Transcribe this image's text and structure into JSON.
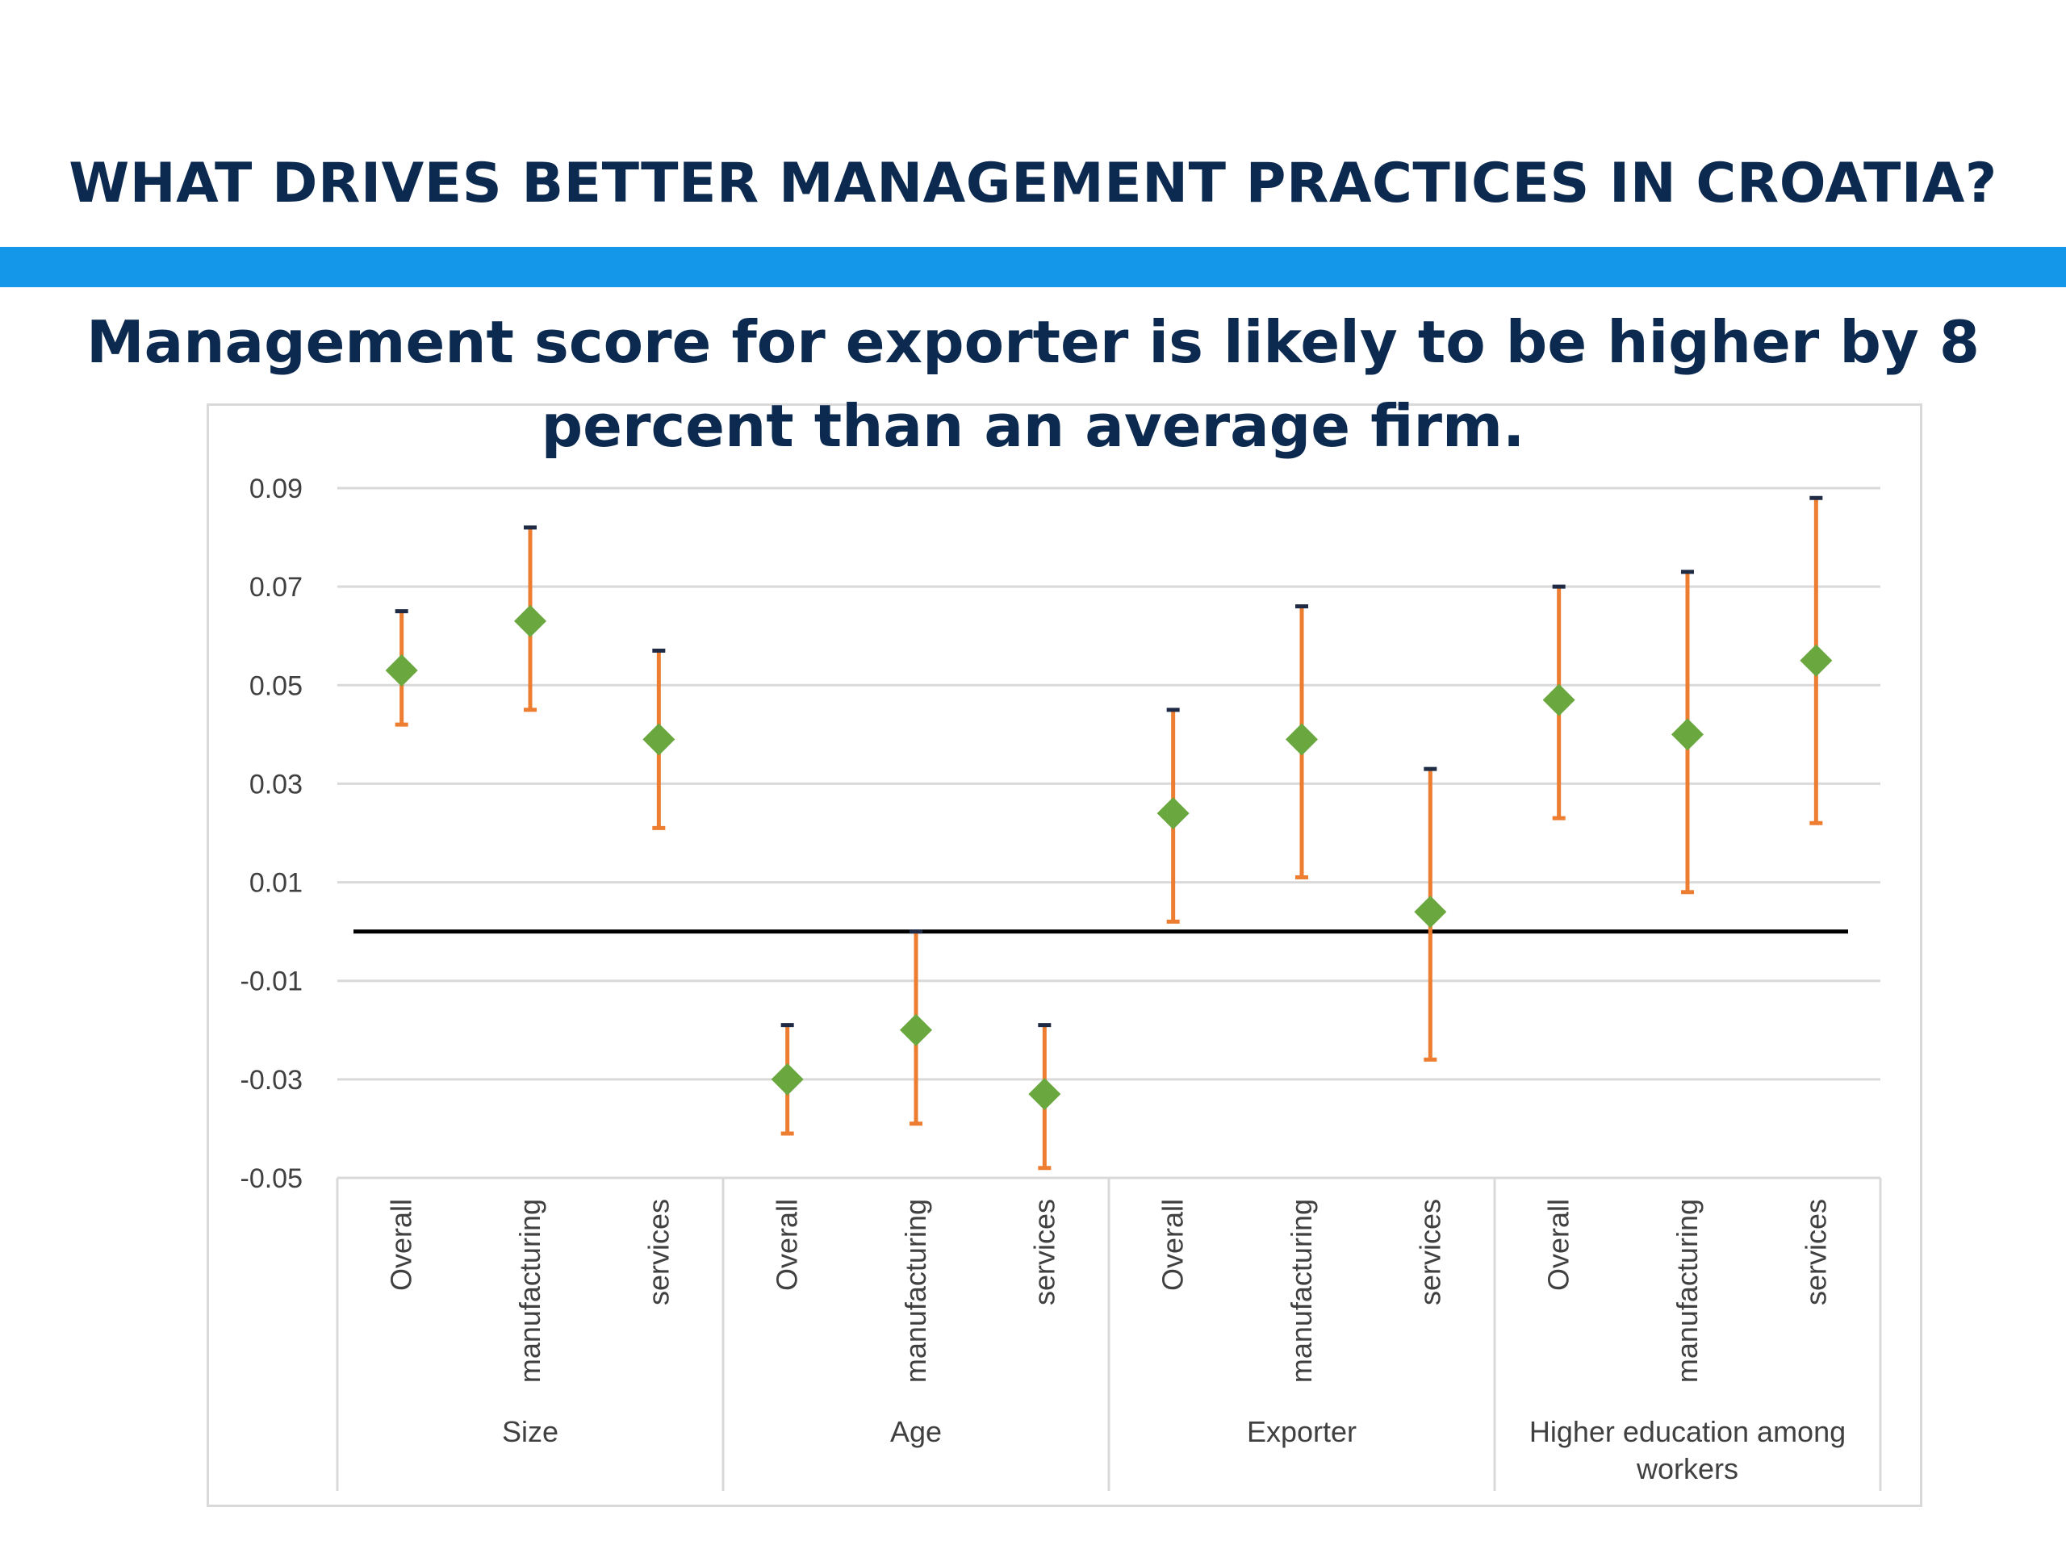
{
  "slide": {
    "title": "WHAT DRIVES BETTER MANAGEMENT PRACTICES IN CROATIA?",
    "subtitle": "Management score for exporter is likely to be higher by 8 percent than an average firm."
  },
  "colors": {
    "accent_bar": "#1497e8",
    "title_text": "#0c2a4f",
    "marker": "#6aa83f",
    "error_bar": "#ed7d31",
    "zero_line": "#000000",
    "grid": "#d9d9d9"
  },
  "chart_data": {
    "type": "scatter",
    "title": "",
    "xlabel": "",
    "ylabel": "",
    "ylim": [
      -0.05,
      0.09
    ],
    "yticks": [
      "0.09",
      "0.07",
      "0.05",
      "0.03",
      "0.01",
      "-0.01",
      "-0.03",
      "-0.05"
    ],
    "ytick_values": [
      0.09,
      0.07,
      0.05,
      0.03,
      0.01,
      -0.01,
      -0.03,
      -0.05
    ],
    "grid": true,
    "reference_line": 0,
    "groups": [
      {
        "label": "Size",
        "categories": [
          "Overall",
          "manufacturing",
          "services"
        ]
      },
      {
        "label": "Age",
        "categories": [
          "Overall",
          "manufacturing",
          "services"
        ]
      },
      {
        "label": "Exporter",
        "categories": [
          "Overall",
          "manufacturing",
          "services"
        ]
      },
      {
        "label": "Higher education among workers",
        "categories": [
          "Overall",
          "manufacturing",
          "services"
        ]
      }
    ],
    "points": [
      {
        "value": 0.053,
        "low": 0.042,
        "high": 0.065
      },
      {
        "value": 0.063,
        "low": 0.045,
        "high": 0.082
      },
      {
        "value": 0.039,
        "low": 0.021,
        "high": 0.057
      },
      {
        "value": -0.03,
        "low": -0.041,
        "high": -0.019
      },
      {
        "value": -0.02,
        "low": -0.039,
        "high": 0.0
      },
      {
        "value": -0.033,
        "low": -0.048,
        "high": -0.019
      },
      {
        "value": 0.024,
        "low": 0.002,
        "high": 0.045
      },
      {
        "value": 0.039,
        "low": 0.011,
        "high": 0.066
      },
      {
        "value": 0.004,
        "low": -0.026,
        "high": 0.033
      },
      {
        "value": 0.047,
        "low": 0.023,
        "high": 0.07
      },
      {
        "value": 0.04,
        "low": 0.008,
        "high": 0.073
      },
      {
        "value": 0.055,
        "low": 0.022,
        "high": 0.088
      }
    ]
  }
}
